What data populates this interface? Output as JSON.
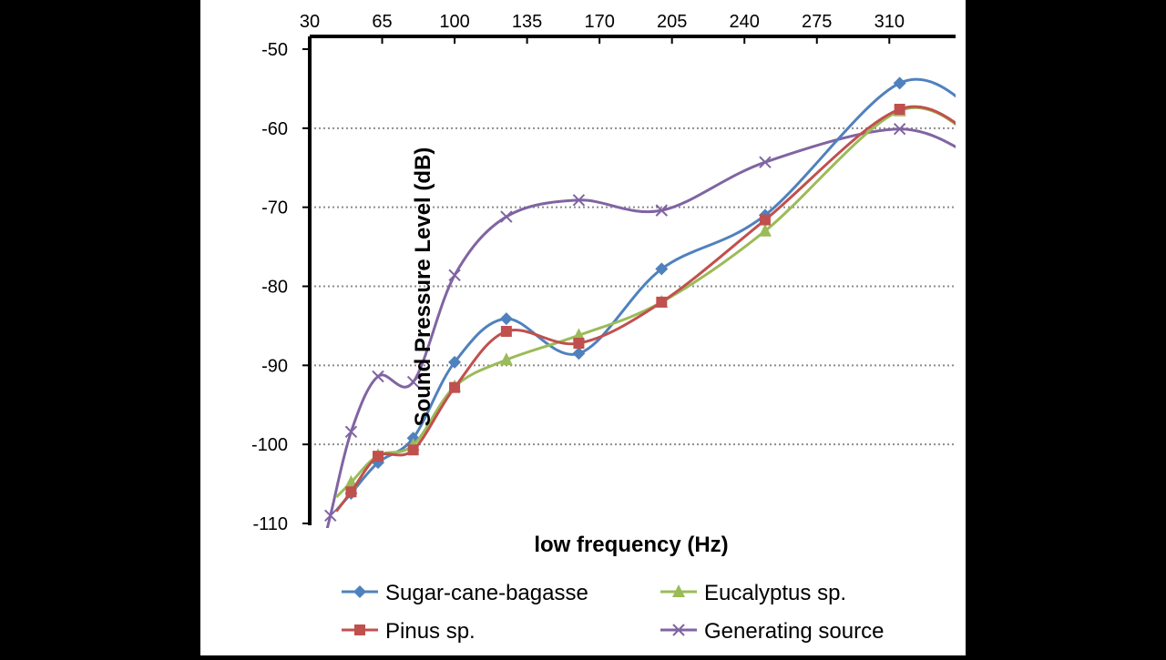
{
  "chart_data": {
    "type": "line",
    "title": "",
    "xlabel": "low frequency (Hz)",
    "ylabel": "Sound Pressure  Level (dB)",
    "xlim": [
      30,
      342
    ],
    "ylim": [
      -110,
      -50
    ],
    "x_ticks": [
      "30",
      "65",
      "100",
      "135",
      "170",
      "205",
      "240",
      "275",
      "310"
    ],
    "y_ticks": [
      "-50",
      "-60",
      "-70",
      "-80",
      "-90",
      "-100",
      "-110"
    ],
    "x_axis_position": "top",
    "grid": "horizontal dotted",
    "legend_position": "bottom",
    "series": [
      {
        "name": "Sugar-cane-bagasse",
        "color": "#4f81bd",
        "marker": "diamond",
        "x": [
          50,
          63,
          80,
          100,
          125,
          160,
          200,
          250,
          315
        ],
        "y": [
          -106.2,
          -102.3,
          -99.2,
          -89.6,
          -84.1,
          -88.5,
          -77.8,
          -71.0,
          -54.3
        ]
      },
      {
        "name": "Eucalyptus sp.",
        "color": "#9bbb59",
        "marker": "triangle",
        "x": [
          50,
          63,
          80,
          100,
          125,
          160,
          200,
          250,
          315
        ],
        "y": [
          -104.8,
          -101.4,
          -100.1,
          -92.7,
          -89.3,
          -86.2,
          -82.0,
          -73.0,
          -57.8
        ]
      },
      {
        "name": "Pinus sp.",
        "color": "#c0504d",
        "marker": "square",
        "x": [
          50,
          63,
          80,
          100,
          125,
          160,
          200,
          250,
          315
        ],
        "y": [
          -106.0,
          -101.5,
          -100.7,
          -92.8,
          -85.7,
          -87.2,
          -82.0,
          -71.6,
          -57.6
        ]
      },
      {
        "name": "Generating source",
        "color": "#8064a2",
        "marker": "x",
        "x": [
          40,
          50,
          63,
          80,
          100,
          125,
          160,
          200,
          250,
          315
        ],
        "y": [
          -109.0,
          -98.4,
          -91.4,
          -92.1,
          -78.6,
          -71.2,
          -69.1,
          -70.4,
          -64.3,
          -60.1
        ]
      }
    ]
  }
}
